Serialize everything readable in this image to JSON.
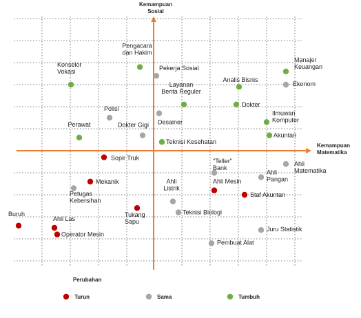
{
  "chart_data": {
    "type": "scatter",
    "x_axis_label": "Kemampuan Matematika",
    "y_axis_label": "Kemampuan Sosial",
    "grid": true,
    "colors": {
      "Turun": "#c00000",
      "Sama": "#a6a6a6",
      "Tumbuh": "#70ad47",
      "axis": "#ed7d31",
      "grid": "#555555"
    },
    "legend": {
      "title": "Perubahan",
      "placement": "bottom-left",
      "entries": [
        "Turun",
        "Sama",
        "Tumbuh"
      ]
    },
    "points": [
      {
        "label": "Pengacara dan Hakim",
        "x": -0.5,
        "y": 3.8,
        "group": "Tumbuh"
      },
      {
        "label": "Pekerja Sosial",
        "x": 0.1,
        "y": 3.4,
        "group": "Sama"
      },
      {
        "label": "Konselor Vokasi",
        "x": -3.0,
        "y": 3.0,
        "group": "Tumbuh"
      },
      {
        "label": "Manajer Keuangan",
        "x": 4.8,
        "y": 3.6,
        "group": "Tumbuh"
      },
      {
        "label": "Analis Bisnis",
        "x": 3.1,
        "y": 2.9,
        "group": "Tumbuh"
      },
      {
        "label": "Ekonom",
        "x": 4.8,
        "y": 3.0,
        "group": "Sama"
      },
      {
        "label": "Layanan Berita Reguler",
        "x": 1.1,
        "y": 2.1,
        "group": "Tumbuh"
      },
      {
        "label": "Dokter",
        "x": 3.0,
        "y": 2.1,
        "group": "Tumbuh"
      },
      {
        "label": "Polisi",
        "x": -1.6,
        "y": 1.5,
        "group": "Sama"
      },
      {
        "label": "Desainer",
        "x": 0.2,
        "y": 1.7,
        "group": "Sama"
      },
      {
        "label": "Ilmuwan Komputer",
        "x": 4.1,
        "y": 1.3,
        "group": "Tumbuh"
      },
      {
        "label": "Perawat",
        "x": -2.7,
        "y": 0.6,
        "group": "Tumbuh"
      },
      {
        "label": "Dokter Gigi",
        "x": -0.4,
        "y": 0.7,
        "group": "Sama"
      },
      {
        "label": "Akuntan",
        "x": 4.2,
        "y": 0.7,
        "group": "Tumbuh"
      },
      {
        "label": "Teknisi Kesehatan",
        "x": 0.3,
        "y": 0.4,
        "group": "Tumbuh"
      },
      {
        "label": "Sopir Truk",
        "x": -1.8,
        "y": -0.3,
        "group": "Turun"
      },
      {
        "label": "\"Teller\" Bank",
        "x": 2.2,
        "y": -1.0,
        "group": "Sama"
      },
      {
        "label": "Ahli Matematika",
        "x": 4.8,
        "y": -0.6,
        "group": "Sama"
      },
      {
        "label": "Mekanik",
        "x": -2.3,
        "y": -1.4,
        "group": "Turun"
      },
      {
        "label": "Ahli Pangan",
        "x": 3.9,
        "y": -1.2,
        "group": "Sama"
      },
      {
        "label": "Petugas Kebersihan",
        "x": -2.9,
        "y": -1.7,
        "group": "Sama"
      },
      {
        "label": "Ahli Mesin",
        "x": 2.2,
        "y": -1.8,
        "group": "Turun"
      },
      {
        "label": "Ahli Listrik",
        "x": 0.7,
        "y": -2.3,
        "group": "Sama"
      },
      {
        "label": "Staf Akuntan",
        "x": 3.3,
        "y": -2.0,
        "group": "Turun"
      },
      {
        "label": "Tukang Sapu",
        "x": -0.6,
        "y": -2.6,
        "group": "Turun"
      },
      {
        "label": "Teknisi Biologi",
        "x": 0.9,
        "y": -2.8,
        "group": "Sama"
      },
      {
        "label": "Buruh",
        "x": -4.9,
        "y": -3.4,
        "group": "Turun"
      },
      {
        "label": "Ahli Las",
        "x": -3.6,
        "y": -3.5,
        "group": "Turun"
      },
      {
        "label": "Operator Mesin",
        "x": -3.5,
        "y": -3.8,
        "group": "Turun"
      },
      {
        "label": "Juru Statistik",
        "x": 3.9,
        "y": -3.6,
        "group": "Sama"
      },
      {
        "label": "Pembuat Alat",
        "x": 2.1,
        "y": -4.2,
        "group": "Sama"
      }
    ]
  }
}
